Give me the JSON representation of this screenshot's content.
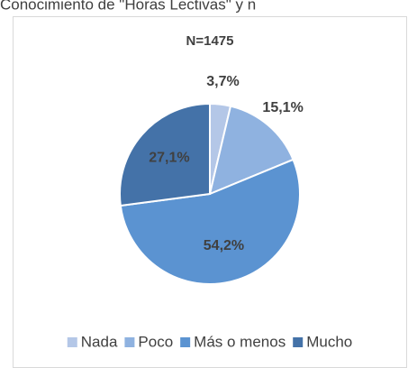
{
  "chart_data": {
    "type": "pie",
    "title": "Conocimiento de \"Horas Lectivas\" y n",
    "subtitle": "N=1475",
    "categories": [
      "Nada",
      "Poco",
      "Más o menos",
      "Mucho"
    ],
    "values": [
      3.7,
      15.1,
      54.2,
      27.1
    ],
    "value_labels": [
      "3,7%",
      "15,1%",
      "54,2%",
      "27,1%"
    ],
    "colors": [
      "#b4c7e7",
      "#8fb2e0",
      "#5b93d1",
      "#4472a8"
    ],
    "legend": "bottom"
  }
}
